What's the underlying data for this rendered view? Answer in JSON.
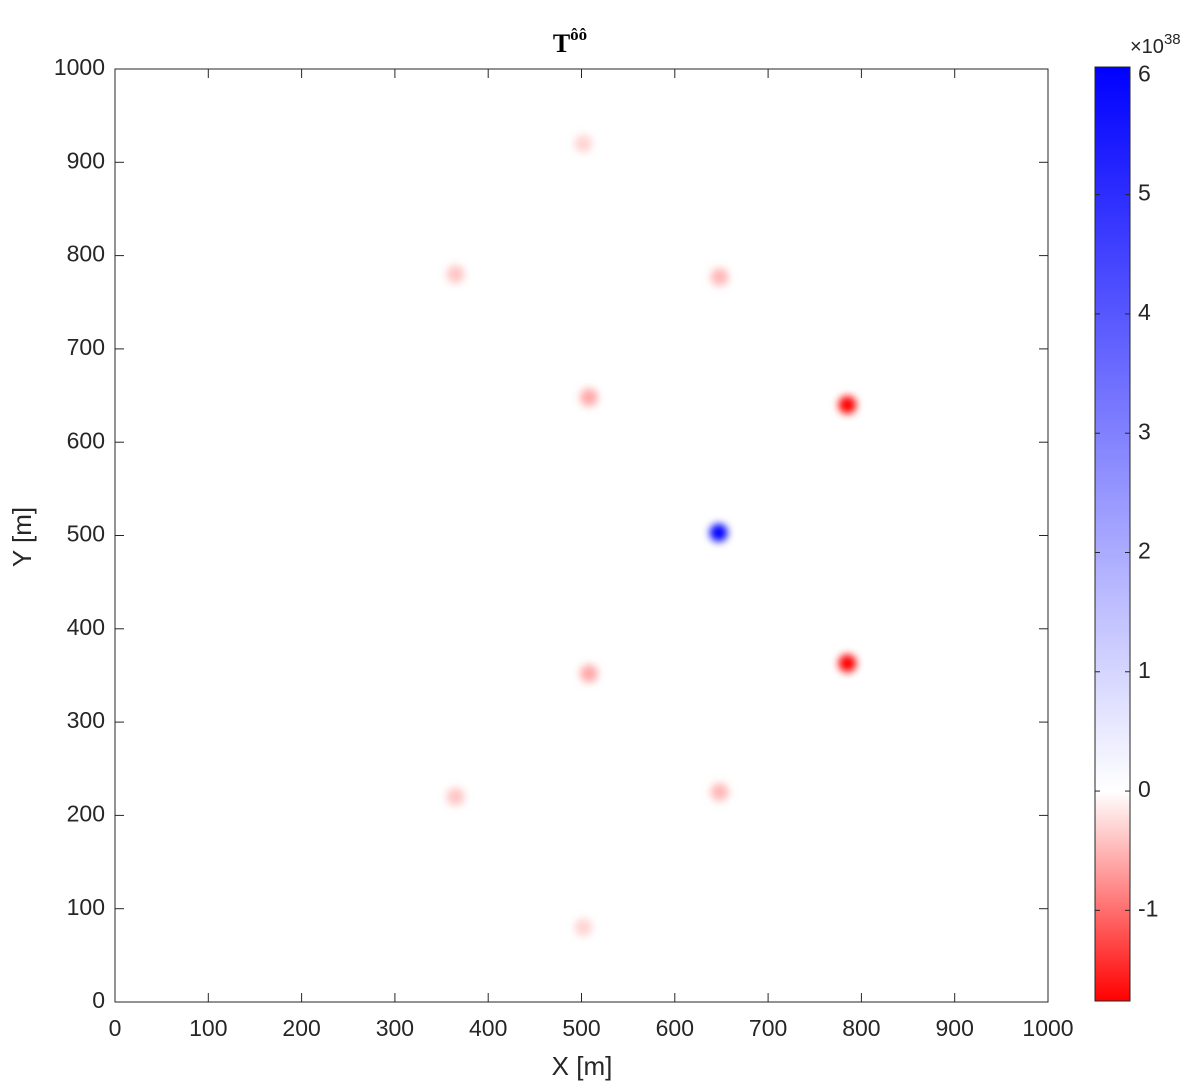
{
  "chart_data": {
    "type": "heatmap",
    "title": "T",
    "title_superscript": "ôô",
    "x_label": "X [m]",
    "y_label": "Y [m]",
    "x": [
      502,
      365,
      648,
      508,
      785,
      647,
      785,
      508,
      648,
      365,
      502
    ],
    "y": [
      920,
      780,
      777,
      648,
      640,
      503,
      363,
      352,
      225,
      220,
      80
    ],
    "values": [
      -0.3,
      -0.4,
      -0.5,
      -0.6,
      -1.76,
      6.07,
      -1.76,
      -0.6,
      -0.5,
      -0.4,
      -0.3
    ],
    "xlim": [
      0,
      1000
    ],
    "ylim": [
      0,
      1000
    ],
    "xticks": [
      0,
      100,
      200,
      300,
      400,
      500,
      600,
      700,
      800,
      900,
      1000
    ],
    "yticks": [
      0,
      100,
      200,
      300,
      400,
      500,
      600,
      700,
      800,
      900,
      1000
    ],
    "clim": [
      -1.76,
      6.07
    ],
    "cticks": [
      -1,
      0,
      1,
      2,
      3,
      4,
      5,
      6
    ],
    "colorbar_multiplier": "×10",
    "colorbar_exponent": "38",
    "colors": {
      "negative": "#ff0000",
      "zero": "#ffffff",
      "positive": "#0000ff"
    }
  }
}
